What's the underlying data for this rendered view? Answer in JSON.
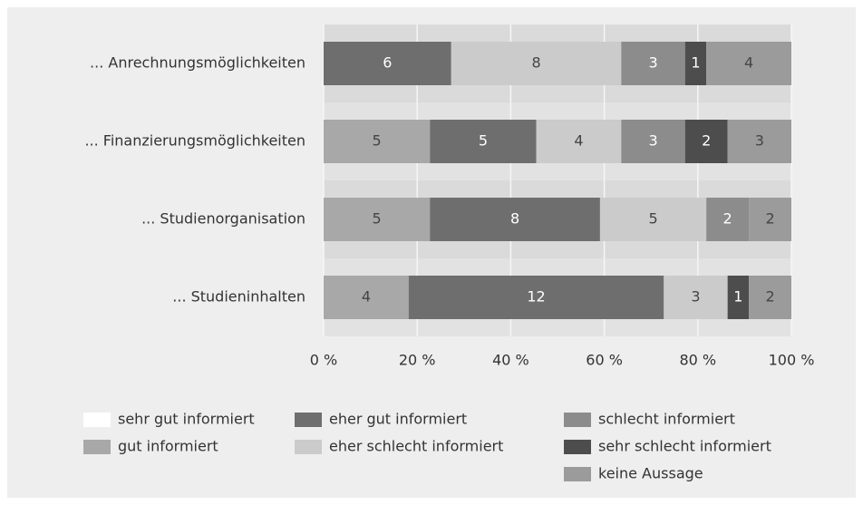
{
  "chart_data": {
    "type": "stacked_bar_100",
    "orientation": "horizontal",
    "categories": [
      "... Anrechnungsmöglichkeiten",
      "... Finanzierungsmöglichkeiten",
      "... Studienorganisation",
      "... Studieninhalten"
    ],
    "series": [
      {
        "name": "sehr gut informiert",
        "color": "#ffffff",
        "values": [
          0,
          0,
          0,
          0
        ]
      },
      {
        "name": "gut informiert",
        "color": "#a8a8a8",
        "values": [
          0,
          5,
          5,
          4
        ]
      },
      {
        "name": "eher gut informiert",
        "color": "#6e6e6e",
        "values": [
          6,
          5,
          8,
          12
        ]
      },
      {
        "name": "eher schlecht informiert",
        "color": "#cbcbcb",
        "values": [
          8,
          4,
          5,
          3
        ]
      },
      {
        "name": "schlecht informiert",
        "color": "#8c8c8c",
        "values": [
          3,
          3,
          2,
          0
        ]
      },
      {
        "name": "sehr schlecht informiert",
        "color": "#4d4d4d",
        "values": [
          1,
          2,
          0,
          1
        ]
      },
      {
        "name": "keine Aussage",
        "color": "#9b9b9b",
        "values": [
          4,
          3,
          2,
          2
        ]
      }
    ],
    "xlim": [
      0,
      100
    ],
    "xticks": [
      {
        "value": 0,
        "label": "0 %"
      },
      {
        "value": 20,
        "label": "20 %"
      },
      {
        "value": 40,
        "label": "40 %"
      },
      {
        "value": 60,
        "label": "60 %"
      },
      {
        "value": 80,
        "label": "80 %"
      },
      {
        "value": 100,
        "label": "100 %"
      }
    ],
    "grid": true
  }
}
